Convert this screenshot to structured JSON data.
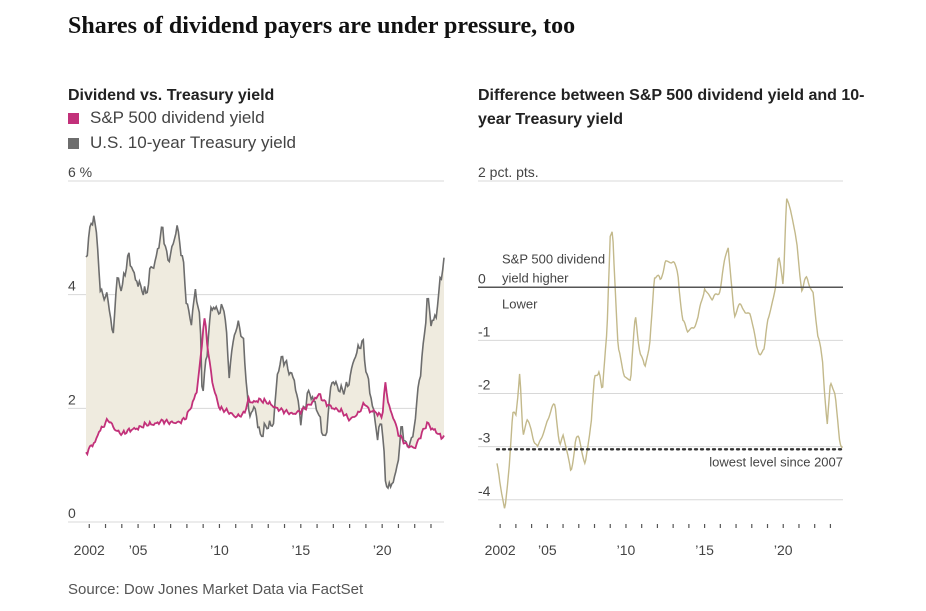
{
  "headline": "Shares of dividend payers are under pressure, too",
  "source": "Source: Dow Jones Market Data via FactSet",
  "colors": {
    "dividend": "#c2317a",
    "treasury": "#6d6d6d",
    "fill": "#efebdf",
    "diff": "#c3b98b"
  },
  "chart_data": [
    {
      "type": "line",
      "title": "Dividend vs. Treasury yield",
      "y_unit_label": "6 %",
      "ylim": [
        0,
        6
      ],
      "yticks": [
        0,
        2,
        4,
        6
      ],
      "x_range": [
        2001.8,
        2023.8
      ],
      "xticks": [
        {
          "value": 2002,
          "label": "2002"
        },
        {
          "value": 2005,
          "label": "’05"
        },
        {
          "value": 2010,
          "label": "’10"
        },
        {
          "value": 2015,
          "label": "’15"
        },
        {
          "value": 2020,
          "label": "’20"
        }
      ],
      "legend_position": "top-left",
      "shaded_area_between_series": true,
      "series": [
        {
          "name": "S&P 500 dividend yield",
          "color": "#c2317a",
          "points": [
            [
              2001.8,
              1.2
            ],
            [
              2002.0,
              1.3
            ],
            [
              2002.4,
              1.42
            ],
            [
              2002.6,
              1.6
            ],
            [
              2002.8,
              1.65
            ],
            [
              2003.0,
              1.75
            ],
            [
              2003.2,
              1.8
            ],
            [
              2003.6,
              1.62
            ],
            [
              2004.0,
              1.55
            ],
            [
              2004.5,
              1.62
            ],
            [
              2005.0,
              1.65
            ],
            [
              2005.5,
              1.72
            ],
            [
              2006.0,
              1.72
            ],
            [
              2006.5,
              1.78
            ],
            [
              2007.0,
              1.75
            ],
            [
              2007.5,
              1.75
            ],
            [
              2007.9,
              1.82
            ],
            [
              2008.3,
              2.05
            ],
            [
              2008.6,
              2.3
            ],
            [
              2008.85,
              2.9
            ],
            [
              2009.0,
              3.4
            ],
            [
              2009.1,
              3.6
            ],
            [
              2009.3,
              3.0
            ],
            [
              2009.6,
              2.4
            ],
            [
              2010.0,
              2.0
            ],
            [
              2010.5,
              1.95
            ],
            [
              2011.0,
              1.85
            ],
            [
              2011.5,
              1.9
            ],
            [
              2011.8,
              2.15
            ],
            [
              2012.0,
              2.1
            ],
            [
              2012.5,
              2.15
            ],
            [
              2013.0,
              2.1
            ],
            [
              2013.5,
              2.0
            ],
            [
              2014.0,
              1.95
            ],
            [
              2014.5,
              1.9
            ],
            [
              2015.0,
              1.95
            ],
            [
              2015.7,
              2.1
            ],
            [
              2016.1,
              2.25
            ],
            [
              2016.5,
              2.1
            ],
            [
              2017.0,
              2.0
            ],
            [
              2017.5,
              1.95
            ],
            [
              2018.0,
              1.8
            ],
            [
              2018.5,
              1.9
            ],
            [
              2018.95,
              2.1
            ],
            [
              2019.2,
              1.95
            ],
            [
              2019.5,
              1.95
            ],
            [
              2020.0,
              1.85
            ],
            [
              2020.2,
              2.45
            ],
            [
              2020.4,
              2.05
            ],
            [
              2020.8,
              1.75
            ],
            [
              2021.0,
              1.55
            ],
            [
              2021.5,
              1.35
            ],
            [
              2022.0,
              1.3
            ],
            [
              2022.5,
              1.6
            ],
            [
              2022.8,
              1.75
            ],
            [
              2023.0,
              1.65
            ],
            [
              2023.3,
              1.6
            ],
            [
              2023.6,
              1.5
            ],
            [
              2023.8,
              1.5
            ]
          ]
        },
        {
          "name": "U.S. 10-year Treasury yield",
          "color": "#6d6d6d",
          "points": [
            [
              2001.8,
              4.6
            ],
            [
              2002.0,
              5.1
            ],
            [
              2002.3,
              5.4
            ],
            [
              2002.5,
              4.9
            ],
            [
              2002.7,
              4.0
            ],
            [
              2002.9,
              4.0
            ],
            [
              2003.2,
              3.9
            ],
            [
              2003.45,
              3.2
            ],
            [
              2003.7,
              4.3
            ],
            [
              2004.0,
              4.1
            ],
            [
              2004.4,
              4.7
            ],
            [
              2004.8,
              4.3
            ],
            [
              2005.0,
              4.2
            ],
            [
              2005.5,
              4.0
            ],
            [
              2005.8,
              4.5
            ],
            [
              2006.0,
              4.5
            ],
            [
              2006.5,
              5.2
            ],
            [
              2006.8,
              4.6
            ],
            [
              2007.0,
              4.7
            ],
            [
              2007.4,
              5.2
            ],
            [
              2007.8,
              4.5
            ],
            [
              2008.0,
              3.8
            ],
            [
              2008.3,
              3.5
            ],
            [
              2008.5,
              4.1
            ],
            [
              2008.8,
              3.6
            ],
            [
              2008.95,
              2.2
            ],
            [
              2009.2,
              2.9
            ],
            [
              2009.5,
              3.8
            ],
            [
              2010.0,
              3.7
            ],
            [
              2010.3,
              3.8
            ],
            [
              2010.6,
              2.6
            ],
            [
              2010.9,
              3.3
            ],
            [
              2011.2,
              3.5
            ],
            [
              2011.5,
              3.1
            ],
            [
              2011.8,
              1.9
            ],
            [
              2012.2,
              2.0
            ],
            [
              2012.5,
              1.5
            ],
            [
              2012.9,
              1.7
            ],
            [
              2013.3,
              1.7
            ],
            [
              2013.6,
              2.7
            ],
            [
              2013.9,
              2.9
            ],
            [
              2014.2,
              2.7
            ],
            [
              2014.6,
              2.5
            ],
            [
              2015.0,
              1.8
            ],
            [
              2015.5,
              2.3
            ],
            [
              2016.0,
              2.0
            ],
            [
              2016.5,
              1.4
            ],
            [
              2016.9,
              2.5
            ],
            [
              2017.5,
              2.3
            ],
            [
              2017.9,
              2.4
            ],
            [
              2018.3,
              2.9
            ],
            [
              2018.8,
              3.2
            ],
            [
              2019.0,
              2.7
            ],
            [
              2019.5,
              1.9
            ],
            [
              2019.7,
              1.5
            ],
            [
              2020.0,
              1.8
            ],
            [
              2020.2,
              0.7
            ],
            [
              2020.5,
              0.6
            ],
            [
              2020.9,
              0.9
            ],
            [
              2021.2,
              1.7
            ],
            [
              2021.5,
              1.3
            ],
            [
              2021.9,
              1.5
            ],
            [
              2022.2,
              2.3
            ],
            [
              2022.5,
              3.0
            ],
            [
              2022.8,
              4.0
            ],
            [
              2023.0,
              3.5
            ],
            [
              2023.3,
              3.6
            ],
            [
              2023.6,
              4.3
            ],
            [
              2023.8,
              4.6
            ]
          ]
        }
      ]
    },
    {
      "type": "line",
      "title": "Difference between S&P 500 dividend yield and 10-year Treasury yield",
      "y_unit_label": "2 pct. pts.",
      "ylim": [
        -4.4,
        2
      ],
      "yticks": [
        -4,
        -3,
        -2,
        -1,
        0,
        2
      ],
      "ytick_labels": [
        "-4",
        "-3",
        "-2",
        "-1",
        "0",
        "2 pct. pts."
      ],
      "x_range": [
        2001.8,
        2023.8
      ],
      "xticks": [
        {
          "value": 2002,
          "label": "2002"
        },
        {
          "value": 2005,
          "label": "’05"
        },
        {
          "value": 2010,
          "label": "’10"
        },
        {
          "value": 2015,
          "label": "’15"
        },
        {
          "value": 2020,
          "label": "’20"
        }
      ],
      "zero_line_labels": {
        "above": [
          "S&P 500 dividend",
          "yield higher"
        ],
        "below": "Lower"
      },
      "reference_line": {
        "value": -3.05,
        "label": "lowest level since 2007",
        "style": "dotted"
      },
      "series": [
        {
          "name": "",
          "color": "#c3b98b",
          "points": [
            [
              2001.8,
              -3.4
            ],
            [
              2002.0,
              -3.8
            ],
            [
              2002.3,
              -4.2
            ],
            [
              2002.6,
              -3.3
            ],
            [
              2002.8,
              -2.5
            ],
            [
              2003.0,
              -2.4
            ],
            [
              2003.25,
              -1.5
            ],
            [
              2003.45,
              -2.8
            ],
            [
              2003.7,
              -2.5
            ],
            [
              2004.0,
              -2.6
            ],
            [
              2004.4,
              -3.1
            ],
            [
              2004.8,
              -2.7
            ],
            [
              2005.0,
              -2.5
            ],
            [
              2005.5,
              -2.3
            ],
            [
              2005.8,
              -2.9
            ],
            [
              2006.0,
              -2.8
            ],
            [
              2006.5,
              -3.4
            ],
            [
              2006.8,
              -2.8
            ],
            [
              2007.0,
              -2.9
            ],
            [
              2007.4,
              -3.3
            ],
            [
              2007.8,
              -2.6
            ],
            [
              2008.0,
              -1.8
            ],
            [
              2008.3,
              -1.5
            ],
            [
              2008.5,
              -2.0
            ],
            [
              2008.8,
              -0.8
            ],
            [
              2009.0,
              1.0
            ],
            [
              2009.15,
              1.2
            ],
            [
              2009.5,
              -1.2
            ],
            [
              2009.9,
              -1.6
            ],
            [
              2010.3,
              -1.8
            ],
            [
              2010.6,
              -0.6
            ],
            [
              2010.9,
              -1.2
            ],
            [
              2011.2,
              -1.6
            ],
            [
              2011.5,
              -1.1
            ],
            [
              2011.8,
              0.3
            ],
            [
              2012.2,
              0.1
            ],
            [
              2012.5,
              0.6
            ],
            [
              2012.9,
              0.4
            ],
            [
              2013.3,
              0.3
            ],
            [
              2013.6,
              -0.7
            ],
            [
              2013.9,
              -0.9
            ],
            [
              2014.2,
              -0.7
            ],
            [
              2014.6,
              -0.6
            ],
            [
              2015.0,
              0.1
            ],
            [
              2015.5,
              -0.3
            ],
            [
              2016.0,
              0.0
            ],
            [
              2016.5,
              0.7
            ],
            [
              2016.9,
              -0.5
            ],
            [
              2017.5,
              -0.3
            ],
            [
              2017.9,
              -0.5
            ],
            [
              2018.3,
              -1.1
            ],
            [
              2018.8,
              -1.3
            ],
            [
              2019.0,
              -0.7
            ],
            [
              2019.5,
              0.0
            ],
            [
              2019.7,
              0.5
            ],
            [
              2020.0,
              0.1
            ],
            [
              2020.2,
              1.8
            ],
            [
              2020.5,
              1.4
            ],
            [
              2020.9,
              0.8
            ],
            [
              2021.2,
              -0.1
            ],
            [
              2021.5,
              0.1
            ],
            [
              2021.9,
              -0.1
            ],
            [
              2022.2,
              -1.0
            ],
            [
              2022.5,
              -1.4
            ],
            [
              2022.8,
              -2.5
            ],
            [
              2023.0,
              -1.8
            ],
            [
              2023.3,
              -2.0
            ],
            [
              2023.6,
              -2.8
            ],
            [
              2023.8,
              -3.05
            ]
          ]
        }
      ]
    }
  ]
}
